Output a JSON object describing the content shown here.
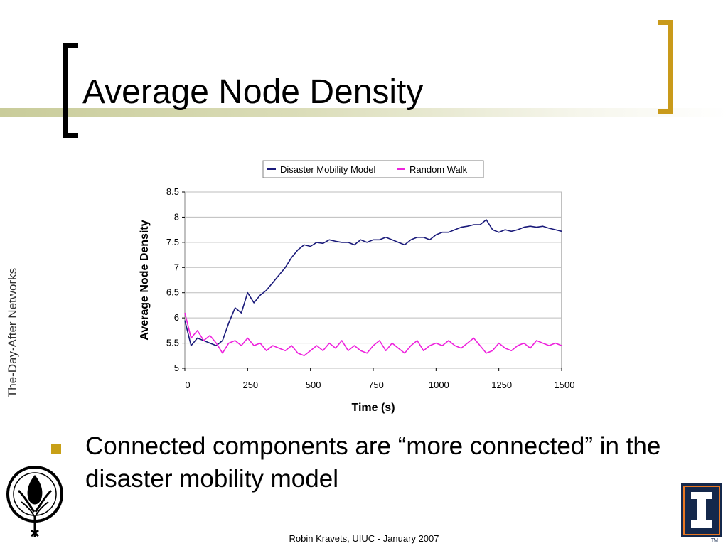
{
  "slide": {
    "title": "Average Node Density",
    "side_label": "The-Day-After Networks",
    "bullet": "Connected components are “more connected” in the disaster mobility model",
    "footer": "Robin Kravets, UIUC - January 2007"
  },
  "colors": {
    "accent_gold": "#c99a1a",
    "title_band": "#c9cc9a",
    "bullet_gold": "#c8a017",
    "uiuc_blue": "#14284b",
    "uiuc_orange": "#e87722"
  },
  "icons": {
    "left_logo": "phoenix-logo-icon",
    "right_logo": "uiuc-block-i-icon"
  },
  "chart_data": {
    "type": "line",
    "xlabel": "Time (s)",
    "ylabel": "Average Node Density",
    "xlim": [
      0,
      1500
    ],
    "ylim": [
      5,
      8.5
    ],
    "xticks": [
      "0",
      "250",
      "500",
      "750",
      "1000",
      "1250",
      "1500"
    ],
    "yticks": [
      "5",
      "5.5",
      "6",
      "6.5",
      "7",
      "7.5",
      "8",
      "8.5"
    ],
    "grid": "horizontal",
    "legend_position": "top",
    "series": [
      {
        "name": "Disaster Mobility Model",
        "color": "#1a1a7a",
        "x": [
          0,
          25,
          50,
          75,
          100,
          125,
          150,
          175,
          200,
          225,
          250,
          275,
          300,
          325,
          350,
          375,
          400,
          425,
          450,
          475,
          500,
          525,
          550,
          575,
          600,
          625,
          650,
          675,
          700,
          725,
          750,
          775,
          800,
          825,
          850,
          875,
          900,
          925,
          950,
          975,
          1000,
          1025,
          1050,
          1075,
          1100,
          1125,
          1150,
          1175,
          1200,
          1225,
          1250,
          1275,
          1300,
          1325,
          1350,
          1375,
          1400,
          1425,
          1450,
          1475,
          1500
        ],
        "y": [
          5.95,
          5.45,
          5.6,
          5.55,
          5.5,
          5.45,
          5.55,
          5.9,
          6.2,
          6.1,
          6.5,
          6.3,
          6.45,
          6.55,
          6.7,
          6.85,
          7.0,
          7.2,
          7.35,
          7.45,
          7.42,
          7.5,
          7.48,
          7.55,
          7.52,
          7.5,
          7.5,
          7.45,
          7.55,
          7.5,
          7.55,
          7.55,
          7.6,
          7.55,
          7.5,
          7.45,
          7.55,
          7.6,
          7.6,
          7.55,
          7.65,
          7.7,
          7.7,
          7.75,
          7.8,
          7.82,
          7.85,
          7.85,
          7.95,
          7.75,
          7.7,
          7.75,
          7.72,
          7.75,
          7.8,
          7.82,
          7.8,
          7.82,
          7.78,
          7.75,
          7.72
        ]
      },
      {
        "name": "Random Walk",
        "color": "#ee22dd",
        "x": [
          0,
          25,
          50,
          75,
          100,
          125,
          150,
          175,
          200,
          225,
          250,
          275,
          300,
          325,
          350,
          375,
          400,
          425,
          450,
          475,
          500,
          525,
          550,
          575,
          600,
          625,
          650,
          675,
          700,
          725,
          750,
          775,
          800,
          825,
          850,
          875,
          900,
          925,
          950,
          975,
          1000,
          1025,
          1050,
          1075,
          1100,
          1125,
          1150,
          1175,
          1200,
          1225,
          1250,
          1275,
          1300,
          1325,
          1350,
          1375,
          1400,
          1425,
          1450,
          1475,
          1500
        ],
        "y": [
          6.1,
          5.6,
          5.75,
          5.55,
          5.65,
          5.5,
          5.3,
          5.5,
          5.55,
          5.45,
          5.6,
          5.45,
          5.5,
          5.35,
          5.45,
          5.4,
          5.35,
          5.45,
          5.3,
          5.25,
          5.35,
          5.45,
          5.35,
          5.5,
          5.4,
          5.55,
          5.35,
          5.45,
          5.35,
          5.3,
          5.45,
          5.55,
          5.35,
          5.5,
          5.4,
          5.3,
          5.45,
          5.55,
          5.35,
          5.45,
          5.5,
          5.45,
          5.55,
          5.45,
          5.4,
          5.5,
          5.6,
          5.45,
          5.3,
          5.35,
          5.5,
          5.4,
          5.35,
          5.45,
          5.5,
          5.4,
          5.55,
          5.5,
          5.45,
          5.5,
          5.45
        ]
      }
    ]
  }
}
